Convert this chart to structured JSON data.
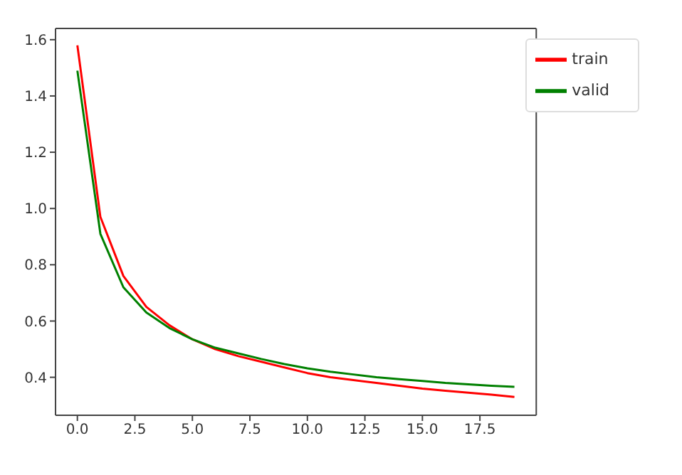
{
  "chart_data": {
    "type": "line",
    "x": [
      0,
      1,
      2,
      3,
      4,
      5,
      6,
      7,
      8,
      9,
      10,
      11,
      12,
      13,
      14,
      15,
      16,
      17,
      18,
      19
    ],
    "series": [
      {
        "name": "train",
        "color": "#ff0000",
        "values": [
          1.58,
          0.97,
          0.76,
          0.65,
          0.585,
          0.535,
          0.5,
          0.475,
          0.455,
          0.435,
          0.415,
          0.4,
          0.39,
          0.38,
          0.37,
          0.36,
          0.352,
          0.345,
          0.338,
          0.33
        ]
      },
      {
        "name": "valid",
        "color": "#008000",
        "values": [
          1.49,
          0.91,
          0.72,
          0.63,
          0.575,
          0.535,
          0.505,
          0.485,
          0.465,
          0.447,
          0.432,
          0.42,
          0.41,
          0.4,
          0.393,
          0.387,
          0.38,
          0.375,
          0.37,
          0.366
        ]
      }
    ],
    "xlim": [
      -0.95,
      19.95
    ],
    "ylim": [
      0.265,
      1.64
    ],
    "xticks": [
      {
        "value": 0,
        "label": "0.0"
      },
      {
        "value": 2.5,
        "label": "2.5"
      },
      {
        "value": 5,
        "label": "5.0"
      },
      {
        "value": 7.5,
        "label": "7.5"
      },
      {
        "value": 10,
        "label": "10.0"
      },
      {
        "value": 12.5,
        "label": "12.5"
      },
      {
        "value": 15,
        "label": "15.0"
      },
      {
        "value": 17.5,
        "label": "17.5"
      }
    ],
    "yticks": [
      {
        "value": 0.4,
        "label": "0.4"
      },
      {
        "value": 0.6,
        "label": "0.6"
      },
      {
        "value": 0.8,
        "label": "0.8"
      },
      {
        "value": 1.0,
        "label": "1.0"
      },
      {
        "value": 1.2,
        "label": "1.2"
      },
      {
        "value": 1.4,
        "label": "1.4"
      },
      {
        "value": 1.6,
        "label": "1.6"
      }
    ],
    "legend": "top right",
    "marker": "none",
    "line_style": "solid",
    "grid": false
  }
}
